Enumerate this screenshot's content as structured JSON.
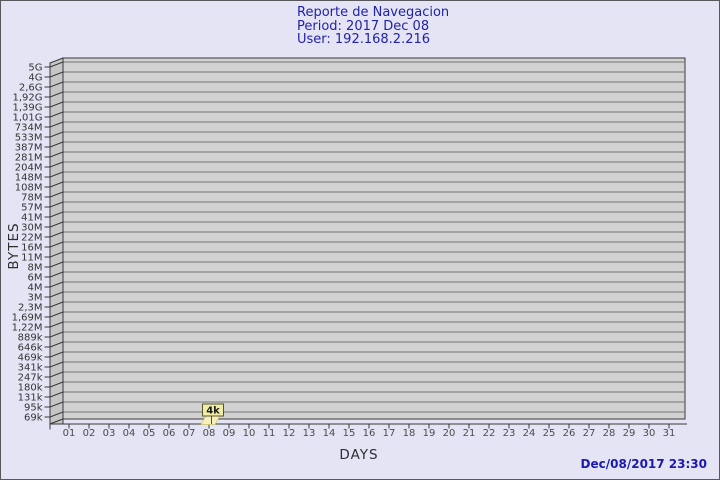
{
  "header": {
    "title": "Reporte de Navegacion",
    "period_line": "Period: 2017 Dec 08",
    "user_line": "User: 192.168.2.216"
  },
  "footer": {
    "generated_timestamp": "Dec/08/2017 23:30"
  },
  "colors": {
    "background": "#e4e4f4",
    "frame_border": "#58585c",
    "plot_fill": "#d2d2d2",
    "grid_line": "#747474",
    "axis_line": "#3a3a3a",
    "wall_fill": "#c6c6c6",
    "title_text": "#2222aa",
    "timestamp_text": "#1a1aae",
    "y_tick_text": "#343434",
    "x_tick_text": "#4c4c4c",
    "axis_title_text": "#2e2e2e",
    "annotation_fill": "#f1eda9",
    "annotation_border": "#55552a",
    "bar_fill": "#f6f0bc",
    "bar_border": "#c9c169"
  },
  "chart_data": {
    "type": "bar",
    "title": "Reporte de Navegacion",
    "period": "2017 Dec 08",
    "user": "192.168.2.216",
    "xlabel": "DAYS",
    "ylabel": "BYTES",
    "grid": true,
    "legend": false,
    "categories": [
      "01",
      "02",
      "03",
      "04",
      "05",
      "06",
      "07",
      "08",
      "09",
      "10",
      "11",
      "12",
      "13",
      "14",
      "15",
      "16",
      "17",
      "18",
      "19",
      "20",
      "21",
      "22",
      "23",
      "24",
      "25",
      "26",
      "27",
      "28",
      "29",
      "30",
      "31"
    ],
    "values": [
      null,
      null,
      null,
      null,
      null,
      null,
      null,
      4000,
      null,
      null,
      null,
      null,
      null,
      null,
      null,
      null,
      null,
      null,
      null,
      null,
      null,
      null,
      null,
      null,
      null,
      null,
      null,
      null,
      null,
      null,
      null
    ],
    "y_tick_labels": [
      "5G",
      "4G",
      "2,6G",
      "1,92G",
      "1,39G",
      "1,01G",
      "734M",
      "533M",
      "387M",
      "281M",
      "204M",
      "148M",
      "108M",
      "78M",
      "57M",
      "41M",
      "30M",
      "22M",
      "16M",
      "11M",
      "8M",
      "6M",
      "4M",
      "3M",
      "2,3M",
      "1,69M",
      "1,22M",
      "889k",
      "646k",
      "469k",
      "341k",
      "247k",
      "180k",
      "131k",
      "95k",
      "69k"
    ],
    "y_axis_top_label": "5G",
    "y_axis_bottom_label": "69k",
    "annotations": [
      {
        "day": "08",
        "label": "4k",
        "approx_value_bytes": 4000
      }
    ]
  }
}
